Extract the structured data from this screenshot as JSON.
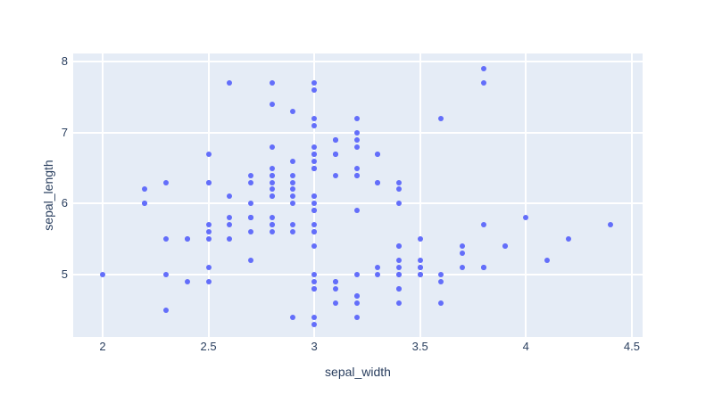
{
  "chart_data": {
    "type": "scatter",
    "title": "",
    "xlabel": "sepal_width",
    "ylabel": "sepal_length",
    "xlim": [
      1.861,
      4.551
    ],
    "ylim": [
      4.122,
      8.113
    ],
    "xticks": [
      2,
      2.5,
      3,
      3.5,
      4,
      4.5
    ],
    "yticks": [
      5,
      6,
      7,
      8
    ],
    "grid": true,
    "legend": false,
    "colors": {
      "paper_bg": "#FFFFFF",
      "plot_bg": "#E5ECF6",
      "gridline": "#FFFFFF",
      "marker": "#636EFA",
      "text": "#2a3f5f"
    },
    "marker": {
      "color": "#636EFA",
      "size": 6
    },
    "points": [
      [
        3.5,
        5.1
      ],
      [
        3.0,
        4.9
      ],
      [
        3.2,
        4.7
      ],
      [
        3.1,
        4.6
      ],
      [
        3.6,
        5.0
      ],
      [
        3.9,
        5.4
      ],
      [
        3.4,
        4.6
      ],
      [
        3.4,
        5.0
      ],
      [
        2.9,
        4.4
      ],
      [
        3.1,
        4.9
      ],
      [
        3.7,
        5.4
      ],
      [
        3.4,
        4.8
      ],
      [
        3.0,
        4.8
      ],
      [
        3.0,
        4.3
      ],
      [
        4.0,
        5.8
      ],
      [
        4.4,
        5.7
      ],
      [
        3.9,
        5.4
      ],
      [
        3.5,
        5.1
      ],
      [
        3.8,
        5.7
      ],
      [
        3.8,
        5.1
      ],
      [
        3.4,
        5.4
      ],
      [
        3.7,
        5.1
      ],
      [
        3.6,
        4.6
      ],
      [
        3.3,
        5.1
      ],
      [
        3.4,
        4.8
      ],
      [
        3.0,
        5.0
      ],
      [
        3.4,
        5.0
      ],
      [
        3.5,
        5.2
      ],
      [
        3.4,
        5.2
      ],
      [
        3.2,
        4.7
      ],
      [
        3.1,
        4.8
      ],
      [
        3.4,
        5.4
      ],
      [
        4.1,
        5.2
      ],
      [
        4.2,
        5.5
      ],
      [
        3.1,
        4.9
      ],
      [
        3.2,
        5.0
      ],
      [
        3.5,
        5.5
      ],
      [
        3.6,
        4.9
      ],
      [
        3.0,
        4.4
      ],
      [
        3.4,
        5.1
      ],
      [
        3.5,
        5.0
      ],
      [
        2.3,
        4.5
      ],
      [
        3.2,
        4.4
      ],
      [
        3.5,
        5.0
      ],
      [
        3.8,
        5.1
      ],
      [
        3.0,
        4.8
      ],
      [
        3.8,
        5.1
      ],
      [
        3.2,
        4.6
      ],
      [
        3.7,
        5.3
      ],
      [
        3.3,
        5.0
      ],
      [
        3.2,
        7.0
      ],
      [
        3.2,
        6.4
      ],
      [
        3.1,
        6.9
      ],
      [
        2.3,
        5.5
      ],
      [
        2.8,
        6.5
      ],
      [
        2.8,
        5.7
      ],
      [
        3.3,
        6.3
      ],
      [
        2.4,
        4.9
      ],
      [
        2.9,
        6.6
      ],
      [
        2.7,
        5.2
      ],
      [
        2.0,
        5.0
      ],
      [
        3.0,
        5.9
      ],
      [
        2.2,
        6.0
      ],
      [
        2.9,
        6.1
      ],
      [
        2.9,
        5.6
      ],
      [
        3.1,
        6.7
      ],
      [
        3.0,
        5.6
      ],
      [
        2.7,
        5.8
      ],
      [
        2.2,
        6.2
      ],
      [
        2.5,
        5.6
      ],
      [
        3.2,
        5.9
      ],
      [
        2.8,
        6.1
      ],
      [
        2.5,
        6.3
      ],
      [
        2.8,
        6.1
      ],
      [
        2.9,
        6.4
      ],
      [
        3.0,
        6.6
      ],
      [
        2.8,
        6.8
      ],
      [
        3.0,
        6.7
      ],
      [
        2.9,
        6.0
      ],
      [
        2.6,
        5.7
      ],
      [
        2.4,
        5.5
      ],
      [
        2.4,
        5.5
      ],
      [
        2.7,
        5.8
      ],
      [
        2.7,
        6.0
      ],
      [
        3.0,
        5.4
      ],
      [
        3.4,
        6.0
      ],
      [
        3.1,
        6.7
      ],
      [
        2.3,
        6.3
      ],
      [
        3.0,
        5.6
      ],
      [
        2.5,
        5.5
      ],
      [
        2.6,
        5.5
      ],
      [
        3.0,
        6.1
      ],
      [
        2.6,
        5.8
      ],
      [
        2.3,
        5.0
      ],
      [
        2.7,
        5.6
      ],
      [
        3.0,
        5.7
      ],
      [
        2.9,
        5.7
      ],
      [
        2.9,
        6.2
      ],
      [
        2.5,
        5.1
      ],
      [
        2.8,
        5.7
      ],
      [
        3.3,
        6.3
      ],
      [
        2.7,
        5.8
      ],
      [
        3.0,
        7.1
      ],
      [
        2.9,
        6.3
      ],
      [
        3.0,
        6.5
      ],
      [
        3.0,
        7.6
      ],
      [
        2.5,
        4.9
      ],
      [
        2.9,
        7.3
      ],
      [
        2.5,
        6.7
      ],
      [
        3.6,
        7.2
      ],
      [
        3.2,
        6.5
      ],
      [
        2.7,
        6.4
      ],
      [
        3.0,
        6.8
      ],
      [
        2.5,
        5.7
      ],
      [
        2.8,
        5.8
      ],
      [
        3.2,
        6.4
      ],
      [
        3.0,
        6.5
      ],
      [
        3.8,
        7.7
      ],
      [
        2.6,
        7.7
      ],
      [
        2.2,
        6.0
      ],
      [
        3.2,
        6.9
      ],
      [
        2.8,
        5.6
      ],
      [
        2.8,
        7.7
      ],
      [
        2.7,
        6.3
      ],
      [
        3.3,
        6.7
      ],
      [
        3.2,
        7.2
      ],
      [
        2.8,
        6.2
      ],
      [
        3.0,
        6.1
      ],
      [
        2.8,
        6.4
      ],
      [
        3.0,
        7.2
      ],
      [
        2.8,
        7.4
      ],
      [
        3.8,
        7.9
      ],
      [
        2.8,
        6.4
      ],
      [
        2.8,
        6.3
      ],
      [
        2.6,
        6.1
      ],
      [
        3.0,
        7.7
      ],
      [
        3.4,
        6.3
      ],
      [
        3.1,
        6.4
      ],
      [
        3.0,
        6.0
      ],
      [
        3.1,
        6.9
      ],
      [
        3.1,
        6.7
      ],
      [
        3.1,
        6.9
      ],
      [
        2.7,
        5.8
      ],
      [
        3.2,
        6.8
      ],
      [
        3.3,
        6.7
      ],
      [
        3.0,
        6.7
      ],
      [
        2.5,
        6.3
      ],
      [
        3.0,
        6.5
      ],
      [
        3.4,
        6.2
      ],
      [
        3.0,
        5.9
      ]
    ]
  }
}
